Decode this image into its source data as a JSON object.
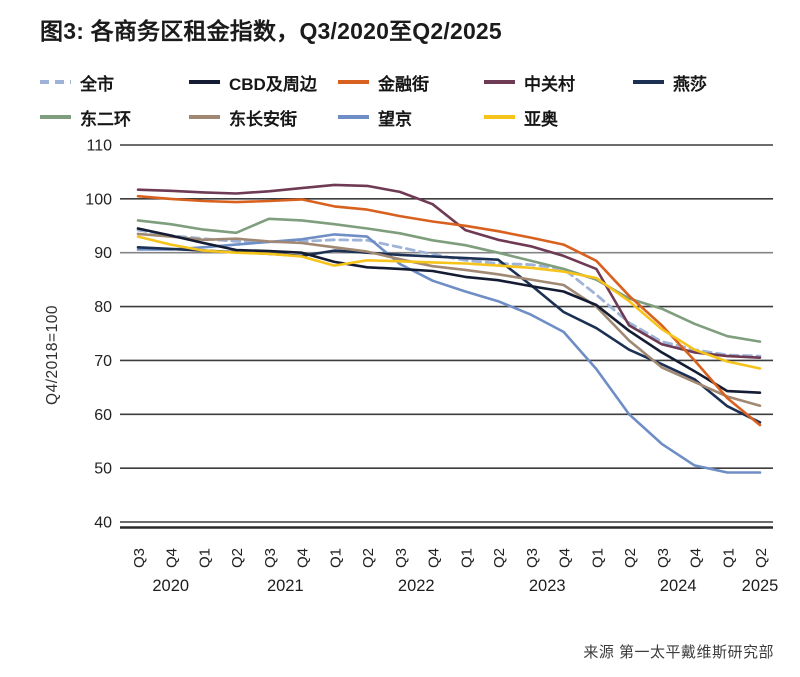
{
  "title": "图3: 各商务区租金指数，Q3/2020至Q2/2025",
  "source": "来源 第一太平戴维斯研究部",
  "chart_data": {
    "type": "line",
    "title": "图3: 各商务区租金指数，Q3/2020至Q2/2025",
    "ylabel": "Q4/2018=100",
    "xlabel": "",
    "ylim": [
      40,
      110
    ],
    "yticks": [
      110,
      100,
      90,
      80,
      70,
      60,
      50,
      40
    ],
    "grid": "horizontal",
    "legend_position": "top",
    "x_quarter_labels": [
      "Q3",
      "Q4",
      "Q1",
      "Q2",
      "Q3",
      "Q4",
      "Q1",
      "Q2",
      "Q3",
      "Q4",
      "Q1",
      "Q2",
      "Q3",
      "Q4",
      "Q1",
      "Q2",
      "Q3",
      "Q4",
      "Q1",
      "Q2"
    ],
    "year_labels": [
      {
        "label": "2020",
        "pos": 1.0
      },
      {
        "label": "2021",
        "pos": 4.5
      },
      {
        "label": "2022",
        "pos": 8.5
      },
      {
        "label": "2023",
        "pos": 12.5
      },
      {
        "label": "2024",
        "pos": 16.5
      },
      {
        "label": "2025",
        "pos": 19.0
      }
    ],
    "series": [
      {
        "name": "全市",
        "color": "#9fb3d9",
        "dashed": true,
        "values": [
          94.2,
          93.2,
          92.6,
          92.1,
          92.0,
          92.1,
          92.4,
          92.3,
          91.0,
          89.7,
          88.6,
          88.0,
          87.8,
          87.0,
          82.2,
          77.0,
          73.5,
          72.0,
          71.0,
          70.8
        ]
      },
      {
        "name": "CBD及周边",
        "color": "#131c32",
        "dashed": false,
        "values": [
          94.5,
          93.2,
          91.8,
          90.5,
          90.3,
          90.0,
          88.3,
          87.3,
          87.0,
          86.6,
          85.5,
          84.9,
          83.8,
          82.8,
          80.3,
          75.5,
          71.5,
          68.0,
          64.3,
          64.0
        ]
      },
      {
        "name": "金融街",
        "color": "#d9611f",
        "dashed": false,
        "values": [
          100.5,
          100.0,
          99.6,
          99.4,
          99.6,
          99.9,
          98.6,
          98.0,
          96.8,
          95.8,
          95.0,
          94.0,
          92.8,
          91.5,
          88.5,
          82.0,
          76.5,
          70.0,
          63.0,
          58.0
        ]
      },
      {
        "name": "中关村",
        "color": "#6f3a53",
        "dashed": false,
        "values": [
          101.7,
          101.5,
          101.2,
          101.0,
          101.4,
          102.0,
          102.6,
          102.4,
          101.3,
          99.0,
          94.2,
          92.4,
          91.2,
          89.4,
          87.0,
          76.5,
          73.0,
          71.5,
          70.8,
          70.5
        ]
      },
      {
        "name": "燕莎",
        "color": "#1c3054",
        "dashed": false,
        "values": [
          91.0,
          90.7,
          90.4,
          90.1,
          89.8,
          89.4,
          90.4,
          90.0,
          89.6,
          89.3,
          89.0,
          88.7,
          84.0,
          79.0,
          76.0,
          72.0,
          69.3,
          66.5,
          61.5,
          58.5
        ]
      },
      {
        "name": "东二环",
        "color": "#7f9e7d",
        "dashed": false,
        "values": [
          96.0,
          95.3,
          94.3,
          93.7,
          96.3,
          96.0,
          95.3,
          94.5,
          93.6,
          92.3,
          91.4,
          90.0,
          88.5,
          87.0,
          85.0,
          81.5,
          79.6,
          76.8,
          74.5,
          73.5
        ]
      },
      {
        "name": "东长安街",
        "color": "#a18873",
        "dashed": false,
        "values": [
          93.5,
          93.0,
          92.4,
          92.6,
          92.1,
          91.8,
          91.0,
          90.2,
          88.8,
          87.5,
          86.8,
          86.0,
          85.0,
          84.0,
          80.0,
          73.7,
          68.7,
          66.0,
          63.3,
          61.6
        ]
      },
      {
        "name": "望京",
        "color": "#6e8ec5",
        "dashed": false,
        "values": [
          90.6,
          90.6,
          91.0,
          91.5,
          92.0,
          92.5,
          93.4,
          93.0,
          87.9,
          84.8,
          82.8,
          81.0,
          78.5,
          75.3,
          68.4,
          60.0,
          54.5,
          50.5,
          49.2,
          49.2
        ]
      },
      {
        "name": "亚奥",
        "color": "#f6c31a",
        "dashed": false,
        "values": [
          93.0,
          91.5,
          90.4,
          90.0,
          89.8,
          89.3,
          87.6,
          88.6,
          88.4,
          88.2,
          88.0,
          87.6,
          87.2,
          86.5,
          85.3,
          81.0,
          75.8,
          72.0,
          69.8,
          68.5
        ]
      }
    ],
    "draw_order": [
      0,
      7,
      4,
      6,
      1,
      5,
      3,
      2,
      8
    ],
    "grid_color": "#3d3d3d",
    "grid_color_light": "#858585",
    "axis_color": "#2b2b2b",
    "tick_color": "#222222"
  },
  "legend_layout": {
    "row1_x": [
      40,
      189,
      338,
      484,
      633
    ],
    "row2_x": [
      40,
      189,
      338,
      484
    ],
    "row1_y": 6,
    "row2_y": 41
  }
}
